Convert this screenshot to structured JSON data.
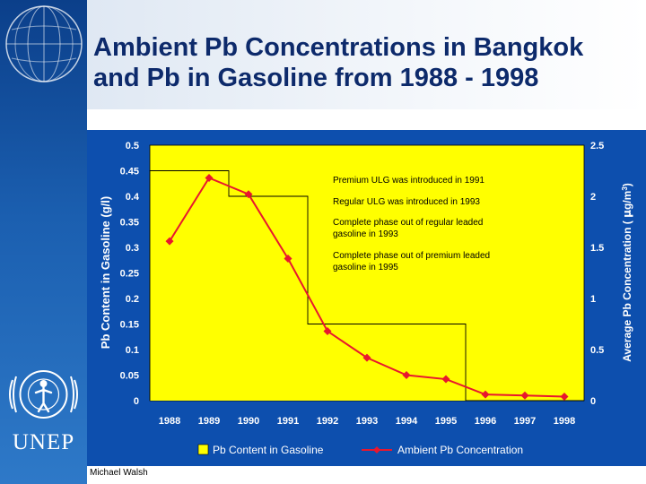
{
  "slide": {
    "title": "Ambient Pb Concentrations in Bangkok and Pb in Gasoline from 1988 - 1998",
    "author": "Michael Walsh",
    "logo_text": "UNEP"
  },
  "colors": {
    "panel": "#0d4fae",
    "plot_area": "#ffff00",
    "bar_fill": "#ffff00",
    "line": "#e8172e",
    "title": "#0d2a6b"
  },
  "chart_data": {
    "type": "bar+line",
    "categories": [
      "1988",
      "1989",
      "1990",
      "1991",
      "1992",
      "1993",
      "1994",
      "1995",
      "1996",
      "1997",
      "1998"
    ],
    "series": [
      {
        "name": "Pb Content in Gasoline",
        "type": "bar",
        "axis": "left",
        "values": [
          0.45,
          0.45,
          0.4,
          0.4,
          0.15,
          0.15,
          0.15,
          0.15,
          0,
          0,
          0
        ]
      },
      {
        "name": "Ambient Pb Concentration",
        "type": "line",
        "axis": "right",
        "values": [
          1.56,
          2.18,
          2.02,
          1.39,
          0.68,
          0.42,
          0.25,
          0.21,
          0.06,
          0.05,
          0.04
        ]
      }
    ],
    "ylabel_left": "Pb Content in Gasoline (g/l)",
    "ylabel_right_prefix": "Average Pb Concentration ( ",
    "ylabel_right_mu": "μ",
    "ylabel_right_unit": "g/m",
    "ylabel_right_sup": "3",
    "ylabel_right_suffix": ")",
    "ylim_left": [
      0,
      0.5
    ],
    "ylim_right": [
      0,
      2.5
    ],
    "yticks_left": [
      "0",
      "0.05",
      "0.1",
      "0.15",
      "0.2",
      "0.25",
      "0.3",
      "0.35",
      "0.4",
      "0.45",
      "0.5"
    ],
    "yticks_right": [
      "0",
      "0.5",
      "1",
      "1.5",
      "2",
      "2.5"
    ],
    "annotations": [
      "Premium ULG was introduced in 1991",
      "Regular ULG was introduced in 1993",
      "Complete phase out of regular leaded gasoline in 1993",
      "Complete phase out of premium leaded gasoline in 1995"
    ],
    "grid": false,
    "legend_position": "bottom"
  }
}
